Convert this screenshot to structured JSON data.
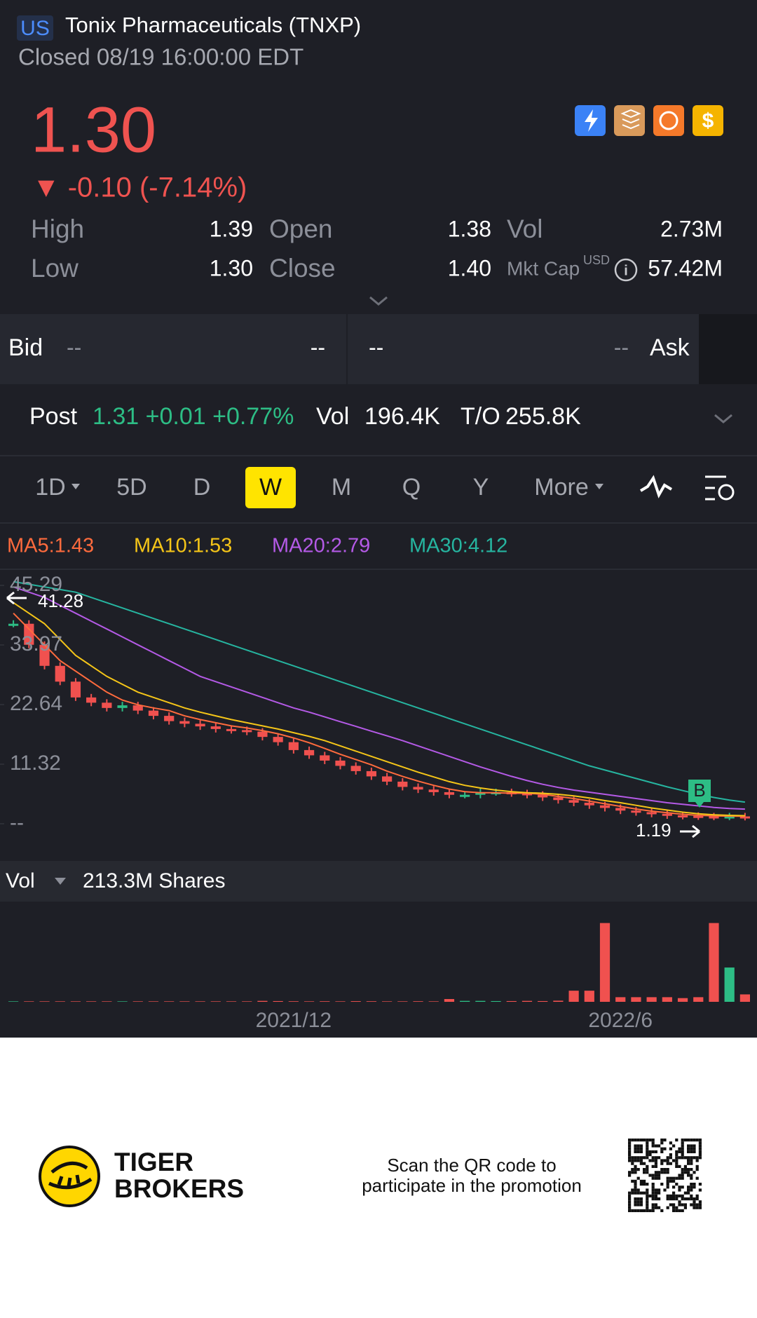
{
  "header": {
    "market": "US",
    "title": "Tonix Pharmaceuticals (TNXP)",
    "status": "Closed 08/19 16:00:00 EDT"
  },
  "quote": {
    "price": "1.30",
    "change": "▼ -0.10 (-7.14%)",
    "stats": [
      {
        "label": "High",
        "value": "1.39"
      },
      {
        "label": "Open",
        "value": "1.38"
      },
      {
        "label": "Vol",
        "value": "2.73M"
      },
      {
        "label": "Low",
        "value": "1.30"
      },
      {
        "label": "Close",
        "value": "1.40"
      },
      {
        "label": "Mkt Cap",
        "unit": "USD",
        "value": "57.42M"
      }
    ]
  },
  "bid_ask": {
    "bid": "Bid",
    "bid_price": "--",
    "bid_size": "--",
    "ask_size": "--",
    "ask_price": "--",
    "ask": "Ask"
  },
  "post": {
    "label": "Post",
    "quote": "1.31 +0.01 +0.77%",
    "vol_label": "Vol",
    "vol": "196.4K",
    "turnover_label": "T/O",
    "turnover": "255.8K"
  },
  "tabs": [
    "1D",
    "5D",
    "D",
    "W",
    "M",
    "Q",
    "Y",
    "More"
  ],
  "active_tab": "W",
  "chart_data": {
    "type": "candlestick",
    "ylim": [
      0,
      45.29
    ],
    "yticks": [
      45.29,
      33.97,
      22.64,
      11.32,
      {
        "value": 0,
        "label": "--"
      }
    ],
    "categories": [
      null,
      null,
      null,
      null,
      null,
      null,
      null,
      null,
      null,
      null,
      null,
      null,
      null,
      null,
      null,
      null,
      null,
      null,
      "2021/12",
      null,
      null,
      null,
      null,
      null,
      null,
      null,
      null,
      null,
      null,
      null,
      null,
      null,
      null,
      null,
      null,
      null,
      null,
      null,
      null,
      "2022/6",
      null,
      null,
      null,
      null,
      null,
      null,
      null,
      null
    ],
    "series": [
      {
        "name": "Close",
        "values": [
          38,
          34,
          30,
          27,
          24,
          23,
          22,
          22.5,
          21.5,
          20.5,
          19.5,
          19,
          18.5,
          18,
          17.8,
          17.5,
          16.5,
          15.5,
          14,
          13,
          12,
          11,
          10,
          9,
          8,
          7,
          6.5,
          6,
          5.5,
          5.5,
          6,
          6,
          5.8,
          5.5,
          5,
          4.5,
          4,
          3.5,
          3,
          2.5,
          2.2,
          1.9,
          1.6,
          1.5,
          1.4,
          1.35,
          1.4,
          1.3
        ]
      }
    ],
    "ma": [
      {
        "name": "MA5:1.43",
        "color": "#ff6b3d",
        "values": [
          40,
          37,
          34,
          31,
          29,
          27,
          25,
          23.5,
          22.6,
          22,
          21.5,
          20.5,
          19.8,
          19.2,
          18.6,
          18.2,
          17.7,
          17.1,
          16.3,
          15.4,
          14.3,
          13.2,
          12.2,
          11.2,
          10,
          9,
          8.1,
          7.3,
          6.6,
          6.1,
          5.9,
          5.9,
          5.8,
          5.8,
          5.6,
          5.2,
          4.8,
          4.3,
          3.8,
          3.3,
          2.8,
          2.4,
          2.1,
          1.8,
          1.6,
          1.5,
          1.45,
          1.43
        ]
      },
      {
        "name": "MA10:1.53",
        "color": "#f5c518",
        "values": [
          42,
          40,
          38,
          35,
          32,
          30,
          28,
          26.5,
          25,
          24,
          23,
          22,
          21.2,
          20.5,
          19.8,
          19.2,
          18.6,
          18,
          17.3,
          16.6,
          15.8,
          14.8,
          13.8,
          12.8,
          11.8,
          10.8,
          9.8,
          8.9,
          8,
          7.3,
          6.8,
          6.4,
          6.1,
          5.9,
          5.8,
          5.6,
          5.3,
          4.9,
          4.4,
          4,
          3.5,
          3,
          2.6,
          2.2,
          1.9,
          1.7,
          1.6,
          1.53
        ]
      },
      {
        "name": "MA20:2.79",
        "color": "#b45ae6",
        "values": [
          45,
          44,
          43,
          41.5,
          40,
          38.5,
          37,
          35.5,
          34,
          32.5,
          31,
          29.5,
          28,
          27,
          26,
          25,
          24,
          23,
          22,
          21.2,
          20.3,
          19.4,
          18.5,
          17.6,
          16.7,
          15.8,
          14.8,
          13.8,
          12.8,
          11.8,
          10.8,
          9.9,
          9,
          8.2,
          7.5,
          6.9,
          6.4,
          6,
          5.6,
          5.2,
          4.8,
          4.4,
          4,
          3.7,
          3.4,
          3.1,
          2.9,
          2.79
        ]
      },
      {
        "name": "MA30:4.12",
        "color": "#26b5a0",
        "values": [
          46,
          45.5,
          45,
          44.5,
          44,
          43,
          42,
          41,
          40,
          39,
          38,
          37,
          36,
          35,
          34,
          33,
          32,
          31,
          30,
          29,
          28,
          27,
          26,
          25,
          24,
          23,
          22,
          21,
          20,
          19,
          18,
          17,
          16,
          15,
          14,
          13,
          12,
          11,
          10.2,
          9.4,
          8.6,
          7.8,
          7,
          6.3,
          5.6,
          5,
          4.5,
          4.12
        ]
      }
    ],
    "annotations": {
      "high": "41.28",
      "low": "1.19",
      "marker": "B"
    }
  },
  "volume": {
    "label": "Vol",
    "total": "213.3M Shares",
    "ylim": [
      0,
      90
    ],
    "values": [
      0.5,
      0.5,
      0.5,
      0.5,
      0.5,
      0.5,
      0.5,
      0.5,
      0.5,
      0.5,
      0.5,
      0.5,
      0.5,
      0.5,
      0.5,
      0.5,
      1,
      0.8,
      0.6,
      0.5,
      0.6,
      0.5,
      0.7,
      0.6,
      0.5,
      0.5,
      0.6,
      0.5,
      3,
      1,
      1,
      0.8,
      0.8,
      1,
      0.8,
      1.2,
      12,
      12,
      85,
      5,
      5,
      5,
      5,
      4,
      5,
      85,
      37,
      8
    ]
  },
  "footer": {
    "brand_line1": "TIGER",
    "brand_line2": "BROKERS",
    "promo_line1": "Scan the QR code to",
    "promo_line2": "participate in the promotion"
  }
}
